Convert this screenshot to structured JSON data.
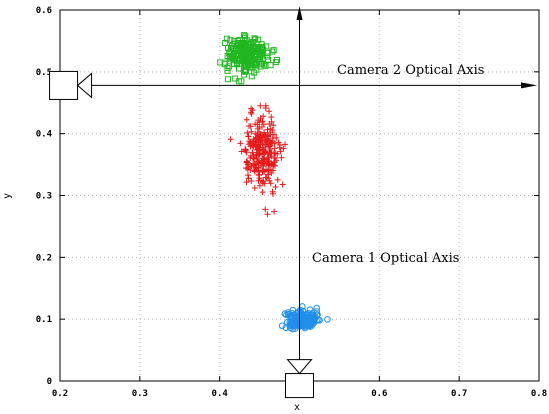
{
  "chart_data": {
    "type": "scatter",
    "xlabel": "x",
    "ylabel": "y",
    "xlim": [
      0.2,
      0.8
    ],
    "ylim": [
      0,
      0.6
    ],
    "xticks": [
      "0.2",
      "0.3",
      "0.4",
      "0.5",
      "0.6",
      "0.7",
      "0.8"
    ],
    "yticks": [
      "0",
      "0.1",
      "0.2",
      "0.3",
      "0.4",
      "0.5",
      "0.6"
    ],
    "grid": true,
    "annotations": [
      "Camera 2 Optical Axis",
      "Camera 1 Optical Axis"
    ],
    "camera_axes": [
      {
        "label": "Camera 2 Optical Axis",
        "direction": "horizontal",
        "at_y": 0.478,
        "from_x": 0.222,
        "to_x": 0.78
      },
      {
        "label": "Camera 1 Optical Axis",
        "direction": "vertical",
        "at_x": 0.5,
        "from_y": 0.012,
        "to_y": 0.6
      }
    ],
    "series": [
      {
        "marker": "square",
        "color": "#22b722",
        "center": [
          0.435,
          0.528
        ],
        "spread": [
          0.013,
          0.014
        ],
        "count": 230
      },
      {
        "marker": "plus",
        "color": "#e41a1c",
        "center": [
          0.452,
          0.37
        ],
        "spread": [
          0.011,
          0.03
        ],
        "count": 260
      },
      {
        "marker": "circle",
        "color": "#1f8fea",
        "center": [
          0.503,
          0.1
        ],
        "spread": [
          0.01,
          0.007
        ],
        "count": 200
      }
    ]
  }
}
